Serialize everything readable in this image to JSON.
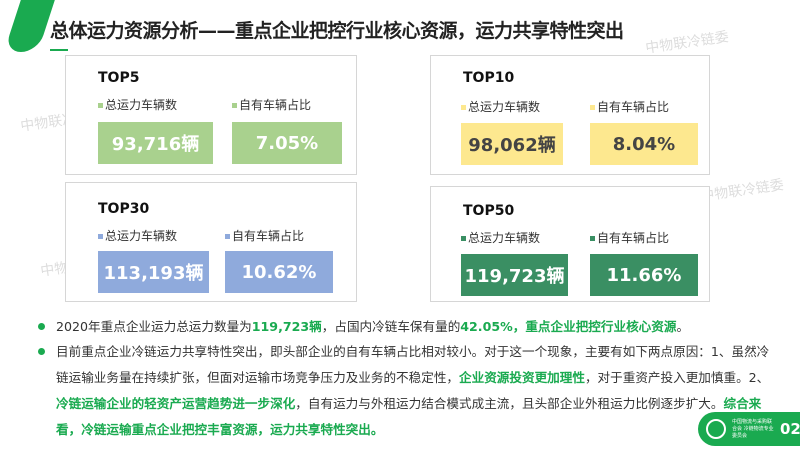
{
  "header": {
    "title": "总体运力资源分析——重点企业把控行业核心资源，运力共享特性突出"
  },
  "watermark": "中物联冷链委",
  "cards": [
    {
      "title": "TOP5",
      "color": "#a9d18e",
      "legend1": "总运力车辆数",
      "legend2": "自有车辆占比",
      "value1": "93,716辆",
      "value2": "7.05%"
    },
    {
      "title": "TOP10",
      "color": "#fde88f",
      "legend1": "总运力车辆数",
      "legend2": "自有车辆占比",
      "value1": "98,062辆",
      "value2": "8.04%"
    },
    {
      "title": "TOP30",
      "color": "#8faadc",
      "legend1": "总运力车辆数",
      "legend2": "自有车辆占比",
      "value1": "113,193辆",
      "value2": "10.62%"
    },
    {
      "title": "TOP50",
      "color": "#3a8f63",
      "legend1": "总运力车辆数",
      "legend2": "自有车辆占比",
      "value1": "119,723辆",
      "value2": "11.66%"
    }
  ],
  "bullets": [
    {
      "parts": [
        "2020年重点企业运力总运力数量为",
        "119,723辆",
        "，占国内冷链车保有量的",
        "42.05%，重点企业把控行业核心资源",
        "。"
      ]
    },
    {
      "parts": [
        "目前重点企业冷链运力共享特性突出，即头部企业的自有车辆占比相对较小。对于这一个现象，主要有如下两点原因：1、虽然冷链运输业务量在持续扩张，但面对运输市场竞争压力及业务的不稳定性，",
        "企业资源投资更加理性",
        "，对于重资产投入更加慎重。2、",
        "冷链运输企业的轻资产运营趋势进一步深化",
        "，自有运力与外租运力结合模式成主流，且头部企业外租运力比例逐步扩大。",
        "综合来看，冷链运输重点企业把控丰富资源，运力共享特性突出。"
      ]
    }
  ],
  "footer": {
    "org": "中国物流与采购联合会 冷链物流专业委员会",
    "page": "02"
  }
}
